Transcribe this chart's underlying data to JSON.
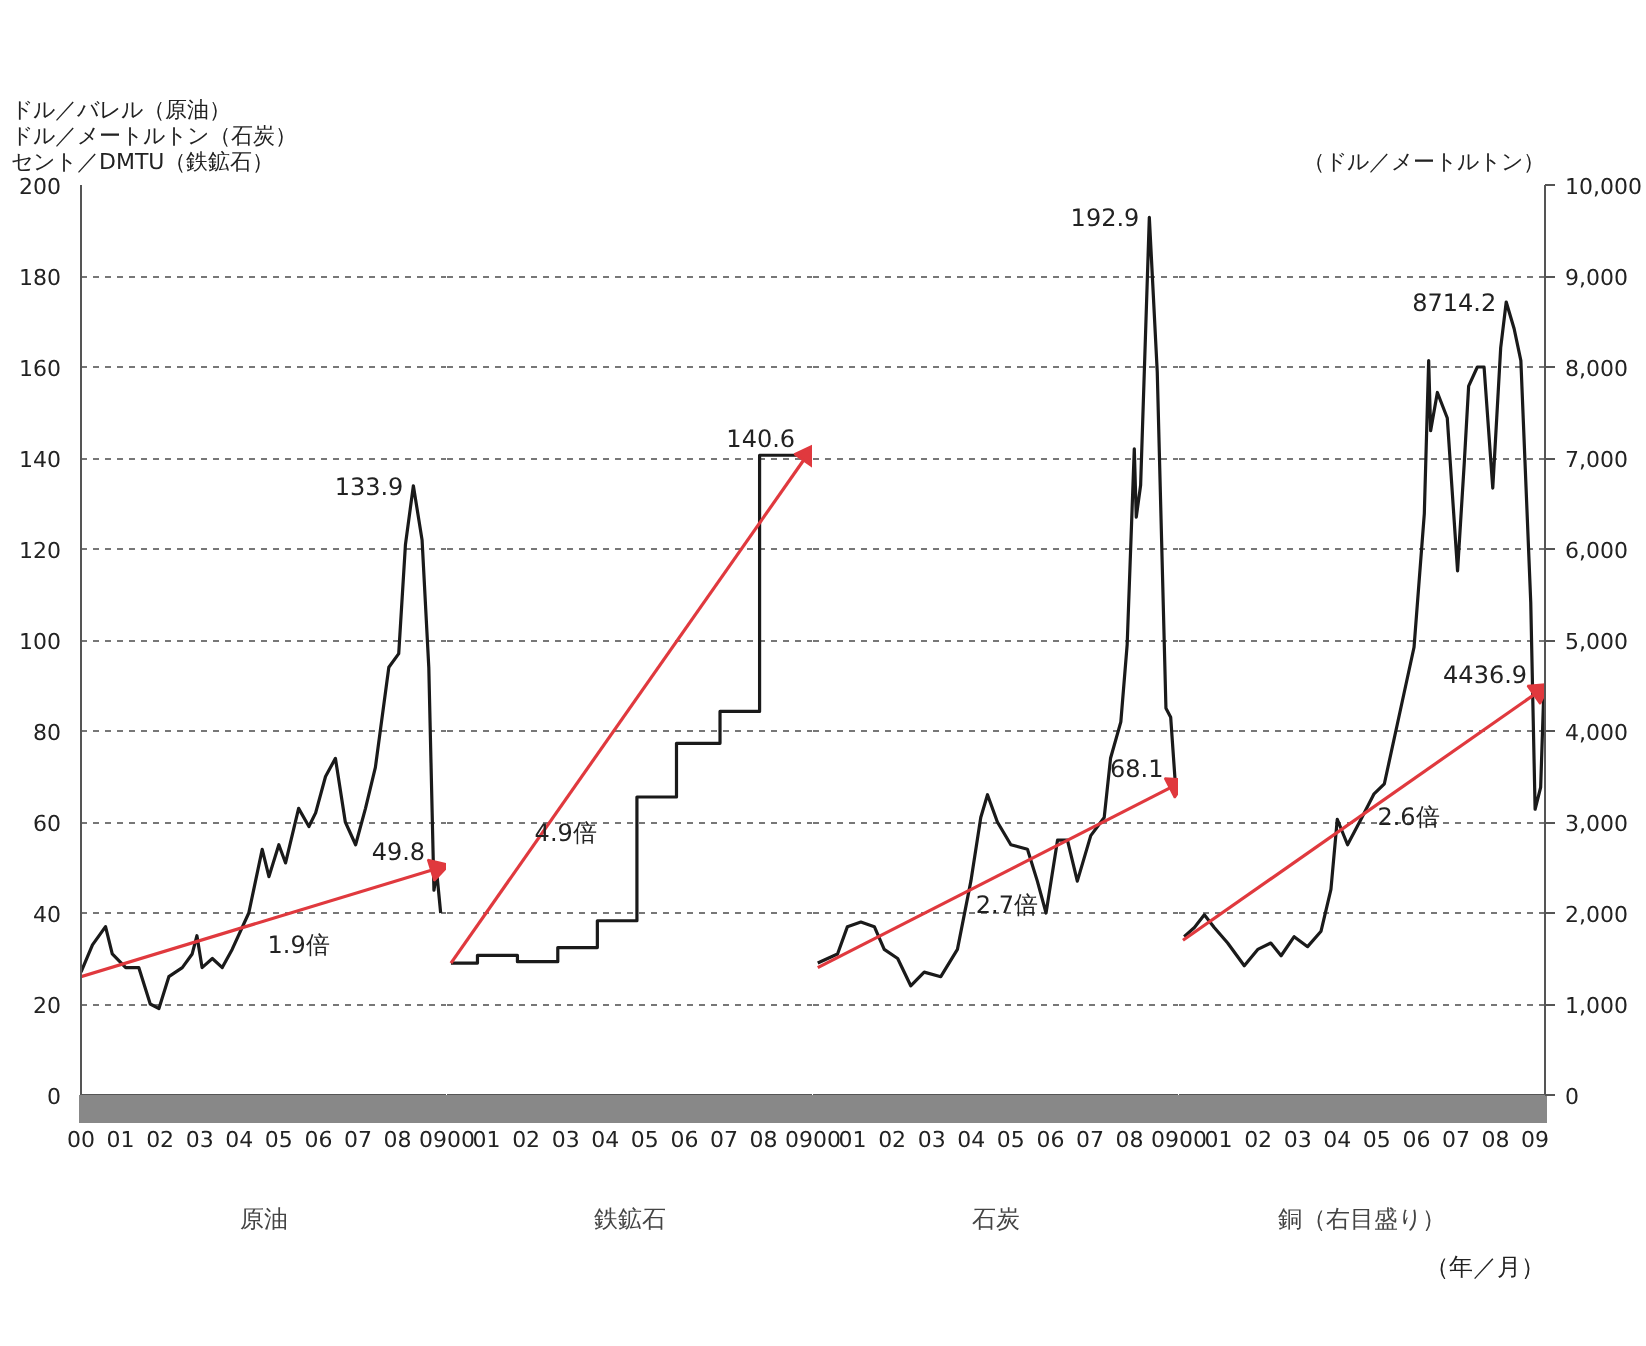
{
  "chart_data": [
    {
      "type": "line",
      "xlabel": "原油",
      "ylabel": "ドル／バレル（原油）ドル／メートルトン（石炭）セント／DMTU（鉄鉱石）",
      "xlim": [
        0,
        9.25
      ],
      "ylim": [
        0,
        200
      ],
      "yticks": [
        0,
        20,
        40,
        60,
        80,
        100,
        120,
        140,
        160,
        180,
        200
      ],
      "xticks": [
        {
          "value": 0,
          "label": "00"
        },
        {
          "value": 1,
          "label": "01"
        },
        {
          "value": 2,
          "label": "02"
        },
        {
          "value": 3,
          "label": "03"
        },
        {
          "value": 4,
          "label": "04"
        },
        {
          "value": 5,
          "label": "05"
        },
        {
          "value": 6,
          "label": "06"
        },
        {
          "value": 7,
          "label": "07"
        },
        {
          "value": 8,
          "label": "08"
        },
        {
          "value": 9,
          "label": "09"
        }
      ],
      "grid": "y",
      "series": [
        {
          "color": "#1a1a1a",
          "x": [
            0.0,
            0.29,
            0.62,
            0.79,
            1.13,
            1.46,
            1.75,
            1.97,
            2.22,
            2.56,
            2.81,
            2.93,
            3.06,
            3.32,
            3.57,
            3.82,
            4.24,
            4.58,
            4.75,
            5.0,
            5.17,
            5.5,
            5.76,
            5.93,
            6.18,
            6.43,
            6.68,
            6.94,
            7.19,
            7.44,
            7.78,
            8.03,
            8.2,
            8.4,
            8.62,
            8.79,
            8.92,
            8.99,
            9.09
          ],
          "values": [
            27,
            33,
            37,
            31,
            28,
            28,
            20,
            19,
            26,
            28,
            31,
            35,
            28,
            30,
            28,
            32,
            40,
            54,
            48,
            55,
            51,
            63,
            59,
            62,
            70,
            74,
            60,
            55,
            63,
            72,
            94,
            97,
            121,
            133.9,
            122,
            94,
            45,
            49,
            40
          ]
        },
        {
          "color": "#e0393e",
          "marker": "triangle",
          "x": [
            0.0,
            9.0
          ],
          "values": [
            26,
            49.8
          ]
        }
      ],
      "annotations": [
        {
          "text": "133.9",
          "x": 8.4,
          "y": 133.9
        },
        {
          "text": "1.9倍",
          "x": 5.5,
          "y": 40.5
        },
        {
          "text": "49.8",
          "x": 9.0,
          "y": 49.8
        }
      ]
    },
    {
      "type": "step",
      "xlabel": "鉄鉱石",
      "xlim": [
        0,
        9.25
      ],
      "ylim": [
        0,
        200
      ],
      "yticks": [
        0,
        20,
        40,
        60,
        80,
        100,
        120,
        140,
        160,
        180,
        200
      ],
      "xticks": [
        {
          "value": 0,
          "label": "00"
        },
        {
          "value": 1,
          "label": "01"
        },
        {
          "value": 2,
          "label": "02"
        },
        {
          "value": 3,
          "label": "03"
        },
        {
          "value": 4,
          "label": "04"
        },
        {
          "value": 5,
          "label": "05"
        },
        {
          "value": 6,
          "label": "06"
        },
        {
          "value": 7,
          "label": "07"
        },
        {
          "value": 8,
          "label": "08"
        },
        {
          "value": 9,
          "label": "09"
        }
      ],
      "grid": "y",
      "tick_labels": "x",
      "series": [
        {
          "color": "#1a1a1a",
          "x": [
            0.1,
            0.77,
            1.78,
            2.8,
            3.8,
            4.8,
            5.8,
            6.9,
            7.9,
            9.1
          ],
          "values": [
            29,
            30.7,
            29.3,
            32.4,
            38.3,
            65.5,
            77.3,
            84.3,
            140.6,
            140.6
          ]
        },
        {
          "type": "line",
          "color": "#e0393e",
          "marker": "triangle",
          "x": [
            0.1,
            9.1
          ],
          "values": [
            29,
            140.6
          ]
        }
      ],
      "annotations": [
        {
          "text": "4.9倍",
          "x": 3.0,
          "y": 65
        },
        {
          "text": "140.6",
          "x": 9.1,
          "y": 140.6
        }
      ]
    },
    {
      "type": "line",
      "xlabel": "石炭",
      "xlim": [
        0,
        9.25
      ],
      "ylim": [
        0,
        200
      ],
      "yticks": [
        0,
        20,
        40,
        60,
        80,
        100,
        120,
        140,
        160,
        180,
        200
      ],
      "xticks": [
        {
          "value": 0,
          "label": "00"
        },
        {
          "value": 1,
          "label": "01"
        },
        {
          "value": 2,
          "label": "02"
        },
        {
          "value": 3,
          "label": "03"
        },
        {
          "value": 4,
          "label": "04"
        },
        {
          "value": 5,
          "label": "05"
        },
        {
          "value": 6,
          "label": "06"
        },
        {
          "value": 7,
          "label": "07"
        },
        {
          "value": 8,
          "label": "08"
        },
        {
          "value": 9,
          "label": "09"
        }
      ],
      "grid": "y",
      "tick_labels": "x",
      "series": [
        {
          "color": "#1a1a1a",
          "x": [
            0.12,
            0.62,
            0.87,
            1.21,
            1.55,
            1.8,
            2.14,
            2.47,
            2.81,
            3.23,
            3.65,
            3.99,
            4.24,
            4.41,
            4.66,
            5.0,
            5.42,
            5.67,
            5.89,
            6.18,
            6.43,
            6.68,
            7.02,
            7.36,
            7.52,
            7.78,
            7.94,
            8.12,
            8.17,
            8.28,
            8.5,
            8.7,
            8.92,
            9.04,
            9.16
          ],
          "values": [
            29,
            31,
            37,
            38,
            37,
            32,
            30,
            24,
            27,
            26,
            32,
            47,
            61,
            66,
            60,
            55,
            54,
            47,
            40,
            56,
            56,
            47,
            57,
            61,
            74,
            82,
            99,
            142,
            127,
            134,
            192.9,
            159,
            85,
            83,
            68.1
          ]
        },
        {
          "color": "#e0393e",
          "marker": "triangle",
          "x": [
            0.12,
            9.16
          ],
          "values": [
            28,
            68.1
          ]
        }
      ],
      "annotations": [
        {
          "text": "2.7倍",
          "x": 4.9,
          "y": 49.2
        },
        {
          "text": "192.9",
          "x": 8.5,
          "y": 192.9
        },
        {
          "text": "68.1",
          "x": 9.16,
          "y": 68.1
        }
      ]
    },
    {
      "type": "line",
      "xlabel": "銅（右目盛り）",
      "ylabel": "（ドル／メートルトン）",
      "xlim": [
        0,
        9.25
      ],
      "ylim": [
        0,
        10000
      ],
      "yticks": [
        0,
        {
          "value": 1000,
          "label": "1,000"
        },
        {
          "value": 2000,
          "label": "2,000"
        },
        {
          "value": 3000,
          "label": "3,000"
        },
        {
          "value": 4000,
          "label": "4,000"
        },
        {
          "value": 5000,
          "label": "5,000"
        },
        {
          "value": 6000,
          "label": "6,000"
        },
        {
          "value": 7000,
          "label": "7,000"
        },
        {
          "value": 8000,
          "label": "8,000"
        },
        {
          "value": 9000,
          "label": "9,000"
        },
        {
          "value": 10000,
          "label": "10,000"
        }
      ],
      "xticks": [
        {
          "value": 0,
          "label": "00"
        },
        {
          "value": 1,
          "label": "01"
        },
        {
          "value": 2,
          "label": "02"
        },
        {
          "value": 3,
          "label": "03"
        },
        {
          "value": 4,
          "label": "04"
        },
        {
          "value": 5,
          "label": "05"
        },
        {
          "value": 6,
          "label": "06"
        },
        {
          "value": 7,
          "label": "07"
        },
        {
          "value": 8,
          "label": "08"
        },
        {
          "value": 9,
          "label": "09"
        }
      ],
      "grid": "y",
      "series": [
        {
          "color": "#1a1a1a",
          "x": [
            0.13,
            0.39,
            0.64,
            0.89,
            1.23,
            1.65,
            1.99,
            2.32,
            2.58,
            2.91,
            3.25,
            3.59,
            3.84,
            4.0,
            4.26,
            4.6,
            4.93,
            5.19,
            5.52,
            5.94,
            6.2,
            6.31,
            6.36,
            6.53,
            6.78,
            7.04,
            7.21,
            7.32,
            7.54,
            7.71,
            7.93,
            8.13,
            8.27,
            8.47,
            8.64,
            8.89,
            9.0,
            9.14,
            9.22
          ],
          "values": [
            1740,
            1840,
            1980,
            1840,
            1670,
            1420,
            1600,
            1670,
            1530,
            1740,
            1630,
            1800,
            2260,
            3030,
            2750,
            3030,
            3310,
            3420,
            4080,
            4920,
            6390,
            8070,
            7300,
            7720,
            7440,
            5760,
            6950,
            7790,
            8000,
            8000,
            6670,
            8210,
            8714.2,
            8420,
            8070,
            5410,
            3140,
            3380,
            4430
          ]
        },
        {
          "color": "#e0393e",
          "marker": "triangle",
          "x": [
            0.1,
            9.1
          ],
          "values": [
            1700,
            4436.9
          ]
        }
      ],
      "annotations": [
        {
          "text": "2.6倍",
          "x": 5.8,
          "y": 3430
        },
        {
          "text": "8714.2",
          "x": 8.27,
          "y": 8714.2
        },
        {
          "text": "4436.9",
          "x": 9.1,
          "y": 4436.9
        },
        "（年／月）"
      ]
    }
  ]
}
